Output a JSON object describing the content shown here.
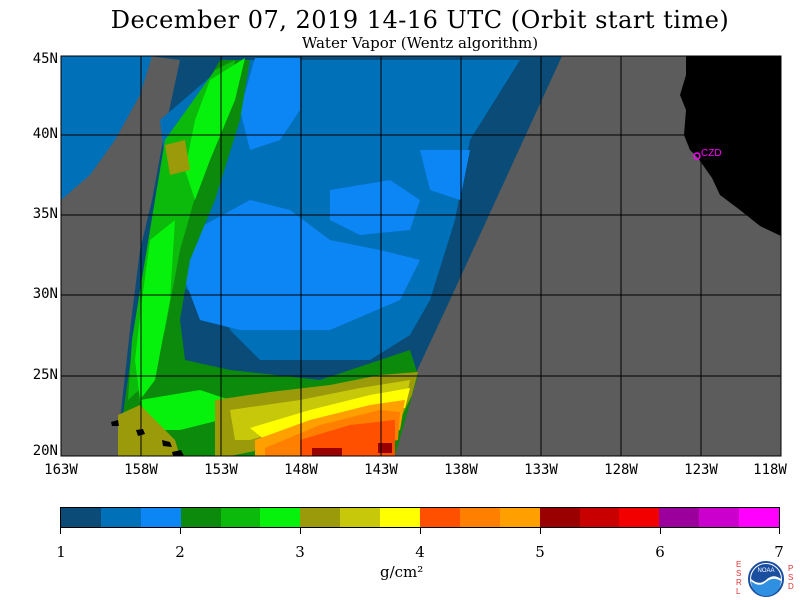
{
  "title": "December 07, 2019  14-16 UTC  (Orbit start time)",
  "subtitle": "Water Vapor (Wentz algorithm)",
  "lat_labels": [
    "45N",
    "40N",
    "35N",
    "30N",
    "25N",
    "20N"
  ],
  "lon_labels": [
    "163W",
    "158W",
    "153W",
    "148W",
    "143W",
    "138W",
    "133W",
    "128W",
    "123W",
    "118W"
  ],
  "station_label": "CZD",
  "colorbar": {
    "colors": [
      "#0a4c77",
      "#0070b8",
      "#0c86f5",
      "#0c8a0c",
      "#0bba0b",
      "#06f20c",
      "#9a9a0a",
      "#c8c80a",
      "#ffff00",
      "#ff5000",
      "#ff7f00",
      "#ffa000",
      "#9a0000",
      "#c80000",
      "#f20000",
      "#9c009c",
      "#cc00cc",
      "#ff00ff"
    ],
    "tick_labels": [
      "1",
      "2",
      "3",
      "4",
      "5",
      "6",
      "7"
    ],
    "units": "g/cm²"
  },
  "logo": {
    "left_letters": [
      "E",
      "S",
      "R",
      "L"
    ],
    "right_letters": [
      "P",
      "S",
      "D"
    ],
    "text": "NOAA"
  }
}
